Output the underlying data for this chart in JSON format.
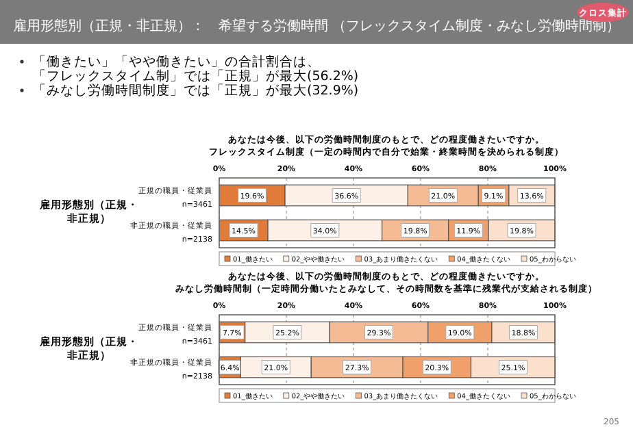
{
  "chart_data": [
    {
      "type": "bar",
      "orientation": "horizontal",
      "stacked": true,
      "title": "あなたは今後、以下の労働時間制度のもとで、どの程度働きたいですか。フレックスタイム制度（一定の時間内で自分で始業・終業時間を決められる制度）",
      "ylabel": "雇用形態別（正規・非正規）",
      "categories": [
        "正規の職員・従業員\nn=3461",
        "非正規の職員・従業員\nn=2138"
      ],
      "xlim": [
        0,
        100
      ],
      "xticks": [
        {
          "value": 0,
          "label": "0%"
        },
        {
          "value": 20,
          "label": "20%"
        },
        {
          "value": 40,
          "label": "40%"
        },
        {
          "value": 60,
          "label": "60%"
        },
        {
          "value": 80,
          "label": "80%"
        },
        {
          "value": 100,
          "label": "100%"
        }
      ],
      "grid": "x",
      "legend": "bottom",
      "series": [
        {
          "name": "01_働きたい",
          "color": "#e07b39",
          "values": [
            19.6,
            14.5
          ],
          "value_labels": [
            "19.6%",
            "14.5%"
          ]
        },
        {
          "name": "02_やや働きたい",
          "color": "#fdf0e6",
          "values": [
            36.6,
            34.0
          ],
          "value_labels": [
            "36.6%",
            "34.0%"
          ]
        },
        {
          "name": "03_あまり働きたくない",
          "color": "#f5bb94",
          "values": [
            21.0,
            19.8
          ],
          "value_labels": [
            "21.0%",
            "19.8%"
          ]
        },
        {
          "name": "04_働きたくない",
          "color": "#f0a06a",
          "values": [
            9.1,
            11.9
          ],
          "value_labels": [
            "9.1%",
            "11.9%"
          ]
        },
        {
          "name": "05_わからない",
          "color": "#fbe1cd",
          "values": [
            13.6,
            19.8
          ],
          "value_labels": [
            "13.6%",
            "19.8%"
          ]
        }
      ],
      "annotations": [
        "雇用形態別（正規・非正規）：　希望する労働時間 （フレックスタイム制度・みなし労働時間制）",
        "クロス集計",
        "「働きたい」「やや働きたい」の合計割合は、「フレックスタイム制」では「正規」が最大(56.2%)",
        "「みなし労働時間制度」では「正規」が最大(32.9%)"
      ]
    },
    {
      "type": "bar",
      "orientation": "horizontal",
      "stacked": true,
      "title": "あなたは今後、以下の労働時間制度のもとで、どの程度働きたいですか。みなし労働時間制（一定時間分働いたとみなして、その時間数を基準に残業代が支給される制度）",
      "ylabel": "雇用形態別（正規・非正規）",
      "categories": [
        "正規の職員・従業員\nn=3461",
        "非正規の職員・従業員\nn=2138"
      ],
      "xlim": [
        0,
        100
      ],
      "xticks": [
        {
          "value": 0,
          "label": "0%"
        },
        {
          "value": 20,
          "label": "20%"
        },
        {
          "value": 40,
          "label": "40%"
        },
        {
          "value": 60,
          "label": "60%"
        },
        {
          "value": 80,
          "label": "80%"
        },
        {
          "value": 100,
          "label": "100%"
        }
      ],
      "grid": "x",
      "legend": "bottom",
      "series": [
        {
          "name": "01_働きたい",
          "color": "#e07b39",
          "values": [
            7.7,
            6.4
          ],
          "value_labels": [
            "7.7%",
            "6.4%"
          ]
        },
        {
          "name": "02_やや働きたい",
          "color": "#fdf0e6",
          "values": [
            25.2,
            21.0
          ],
          "value_labels": [
            "25.2%",
            "21.0%"
          ]
        },
        {
          "name": "03_あまり働きたくない",
          "color": "#f5bb94",
          "values": [
            29.3,
            27.3
          ],
          "value_labels": [
            "29.3%",
            "27.3%"
          ]
        },
        {
          "name": "04_働きたくない",
          "color": "#f0a06a",
          "values": [
            19.0,
            20.3
          ],
          "value_labels": [
            "19.0%",
            "20.3%"
          ]
        },
        {
          "name": "05_わからない",
          "color": "#fbe1cd",
          "values": [
            18.8,
            25.1
          ],
          "value_labels": [
            "18.8%",
            "25.1%"
          ]
        }
      ],
      "annotations": [
        "205"
      ]
    }
  ]
}
